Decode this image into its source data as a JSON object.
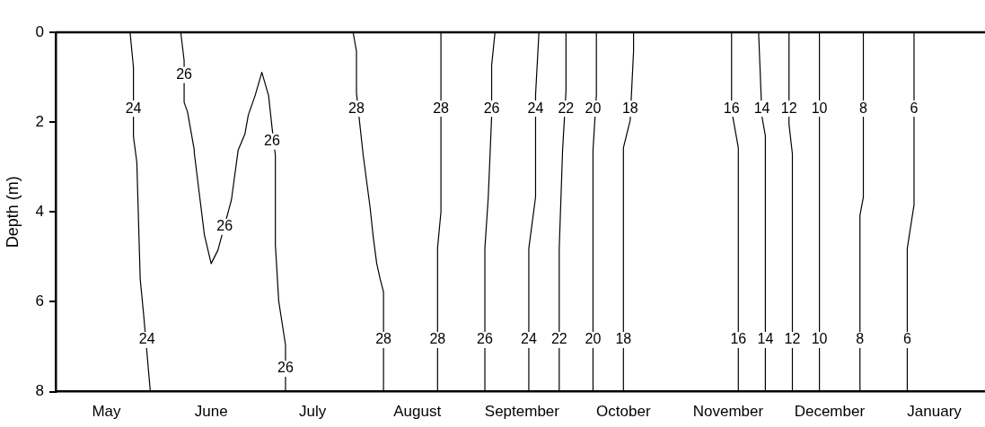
{
  "chart_data": {
    "type": "line",
    "ylabel": "Depth (m)",
    "xlim": [
      "2001-04-16",
      "2002-01-16"
    ],
    "xticks": [
      {
        "value": "--05-01",
        "label": "May"
      },
      {
        "value": "--06-01",
        "label": "June"
      },
      {
        "value": "--07-01",
        "label": "July"
      },
      {
        "value": "--08-01",
        "label": "August"
      },
      {
        "value": "--09-01",
        "label": "September"
      },
      {
        "value": "--10-01",
        "label": "October"
      },
      {
        "value": "--11-01",
        "label": "November"
      },
      {
        "value": "--12-01",
        "label": "December"
      },
      {
        "value": "2002-01-01",
        "label": "January"
      }
    ],
    "ylim": [
      8,
      0
    ],
    "yticks": [
      0,
      2,
      4,
      6,
      8
    ],
    "grid": false,
    "legend": false,
    "marker": "none",
    "line_style": "solid",
    "series": [
      {
        "color": "#000000",
        "x": [
          "--05-08",
          "--05-09",
          "--05-09",
          "--05-10",
          "--05-11",
          "--05-12",
          "--05-14"
        ],
        "values": [
          0,
          0.78,
          2.32,
          2.89,
          5.49,
          6.27,
          8
        ]
      },
      {
        "color": "#000000",
        "x": [
          "--05-23",
          "--05-24",
          "--05-24",
          "--05-25",
          "--05-27",
          "--05-27",
          "--05-30",
          "--06-01",
          "--06-03",
          "--06-07",
          "--06-09",
          "--06-11",
          "--06-12",
          "--06-14",
          "--06-16",
          "--06-18",
          "--06-19",
          "--06-20",
          "--06-20",
          "--06-21",
          "--06-23",
          "--06-23"
        ],
        "values": [
          0,
          0.63,
          1.56,
          1.77,
          2.62,
          2.68,
          4.51,
          5.15,
          4.85,
          3.73,
          2.62,
          2.26,
          1.84,
          1.41,
          0.89,
          1.41,
          2.11,
          2.74,
          4.73,
          5.99,
          6.96,
          8
        ]
      },
      {
        "color": "#000000",
        "x": [
          "--07-13",
          "--07-14",
          "--07-14",
          "--07-15",
          "--07-16",
          "--07-18",
          "--07-19",
          "--07-20",
          "--07-21",
          "--07-22",
          "--07-22"
        ],
        "values": [
          0,
          0.42,
          1.35,
          2.05,
          2.74,
          3.88,
          4.58,
          5.15,
          5.49,
          5.78,
          8
        ]
      },
      {
        "color": "#000000",
        "x": [
          "--08-08",
          "--08-08",
          "--08-08",
          "--08-07",
          "--08-07"
        ],
        "values": [
          0,
          2.3,
          4.0,
          4.8,
          8
        ]
      },
      {
        "color": "#000000",
        "x": [
          "--08-24",
          "--08-23",
          "--08-23",
          "--08-22",
          "--08-21",
          "--08-21"
        ],
        "values": [
          0,
          0.74,
          1.88,
          3.67,
          4.81,
          8
        ]
      },
      {
        "color": "#000000",
        "x": [
          "--09-06",
          "--09-05",
          "--09-05",
          "--09-03",
          "--09-03"
        ],
        "values": [
          0,
          1.39,
          3.67,
          4.81,
          8
        ]
      },
      {
        "color": "#000000",
        "x": [
          "--09-14",
          "--09-14",
          "--09-13",
          "--09-12",
          "--09-12"
        ],
        "values": [
          0,
          1.31,
          2.62,
          4.81,
          8
        ]
      },
      {
        "color": "#000000",
        "x": [
          "--09-23",
          "--09-23",
          "--09-22",
          "--09-22",
          "--09-22"
        ],
        "values": [
          0,
          1.39,
          2.62,
          4.81,
          8
        ]
      },
      {
        "color": "#000000",
        "x": [
          "--10-04",
          "--10-04",
          "--10-03",
          "--10-01",
          "--10-01"
        ],
        "values": [
          0,
          0.42,
          1.96,
          2.57,
          8
        ]
      },
      {
        "color": "#000000",
        "x": [
          "--11-02",
          "--11-02",
          "--11-04",
          "--11-04"
        ],
        "values": [
          0,
          1.73,
          2.57,
          8
        ]
      },
      {
        "color": "#000000",
        "x": [
          "--11-10",
          "--11-11",
          "--11-12",
          "--11-12",
          "--11-12"
        ],
        "values": [
          0,
          1.88,
          2.3,
          2.7,
          8
        ]
      },
      {
        "color": "#000000",
        "x": [
          "--11-19",
          "--11-19",
          "--11-20",
          "--11-20"
        ],
        "values": [
          0,
          2.05,
          2.7,
          8
        ]
      },
      {
        "color": "#000000",
        "x": [
          "--11-28",
          "--11-28",
          "--11-28"
        ],
        "values": [
          0,
          2.53,
          8
        ]
      },
      {
        "color": "#000000",
        "x": [
          "--12-11",
          "--12-11",
          "--12-10",
          "--12-10",
          "--12-10"
        ],
        "values": [
          0,
          3.67,
          4.07,
          4.81,
          8
        ]
      },
      {
        "color": "#000000",
        "x": [
          "--12-26",
          "--12-26",
          "--12-26",
          "--12-24",
          "--12-24"
        ],
        "values": [
          0,
          1.39,
          3.84,
          4.81,
          8
        ]
      }
    ],
    "annotations": [
      {
        "text": "24",
        "x": "--05-09",
        "y": 1.7
      },
      {
        "text": "24",
        "x": "--05-13",
        "y": 6.85
      },
      {
        "text": "26",
        "x": "--05-24",
        "y": 0.95
      },
      {
        "text": "26",
        "x": "--06-05",
        "y": 4.33
      },
      {
        "text": "26",
        "x": "--06-19",
        "y": 2.43
      },
      {
        "text": "26",
        "x": "--06-23",
        "y": 7.49
      },
      {
        "text": "28",
        "x": "--07-14",
        "y": 1.7
      },
      {
        "text": "28",
        "x": "--07-22",
        "y": 6.85
      },
      {
        "text": "28",
        "x": "--08-08",
        "y": 1.7
      },
      {
        "text": "28",
        "x": "--08-07",
        "y": 6.85
      },
      {
        "text": "26",
        "x": "--08-23",
        "y": 1.7
      },
      {
        "text": "26",
        "x": "--08-21",
        "y": 6.85
      },
      {
        "text": "24",
        "x": "--09-05",
        "y": 1.7
      },
      {
        "text": "24",
        "x": "--09-03",
        "y": 6.85
      },
      {
        "text": "22",
        "x": "--09-14",
        "y": 1.7
      },
      {
        "text": "22",
        "x": "--09-12",
        "y": 6.85
      },
      {
        "text": "20",
        "x": "--09-22",
        "y": 1.7
      },
      {
        "text": "20",
        "x": "--09-22",
        "y": 6.85
      },
      {
        "text": "18",
        "x": "--10-03",
        "y": 1.7
      },
      {
        "text": "18",
        "x": "--10-01",
        "y": 6.85
      },
      {
        "text": "16",
        "x": "--11-02",
        "y": 1.7
      },
      {
        "text": "16",
        "x": "--11-04",
        "y": 6.85
      },
      {
        "text": "14",
        "x": "--11-11",
        "y": 1.7
      },
      {
        "text": "14",
        "x": "--11-12",
        "y": 6.85
      },
      {
        "text": "12",
        "x": "--11-19",
        "y": 1.7
      },
      {
        "text": "12",
        "x": "--11-20",
        "y": 6.85
      },
      {
        "text": "10",
        "x": "--11-28",
        "y": 1.7
      },
      {
        "text": "10",
        "x": "--11-28",
        "y": 6.85
      },
      {
        "text": "8",
        "x": "--12-11",
        "y": 1.7
      },
      {
        "text": "8",
        "x": "--12-10",
        "y": 6.85
      },
      {
        "text": "6",
        "x": "--12-26",
        "y": 1.7
      },
      {
        "text": "6",
        "x": "--12-24",
        "y": 6.85
      }
    ]
  }
}
